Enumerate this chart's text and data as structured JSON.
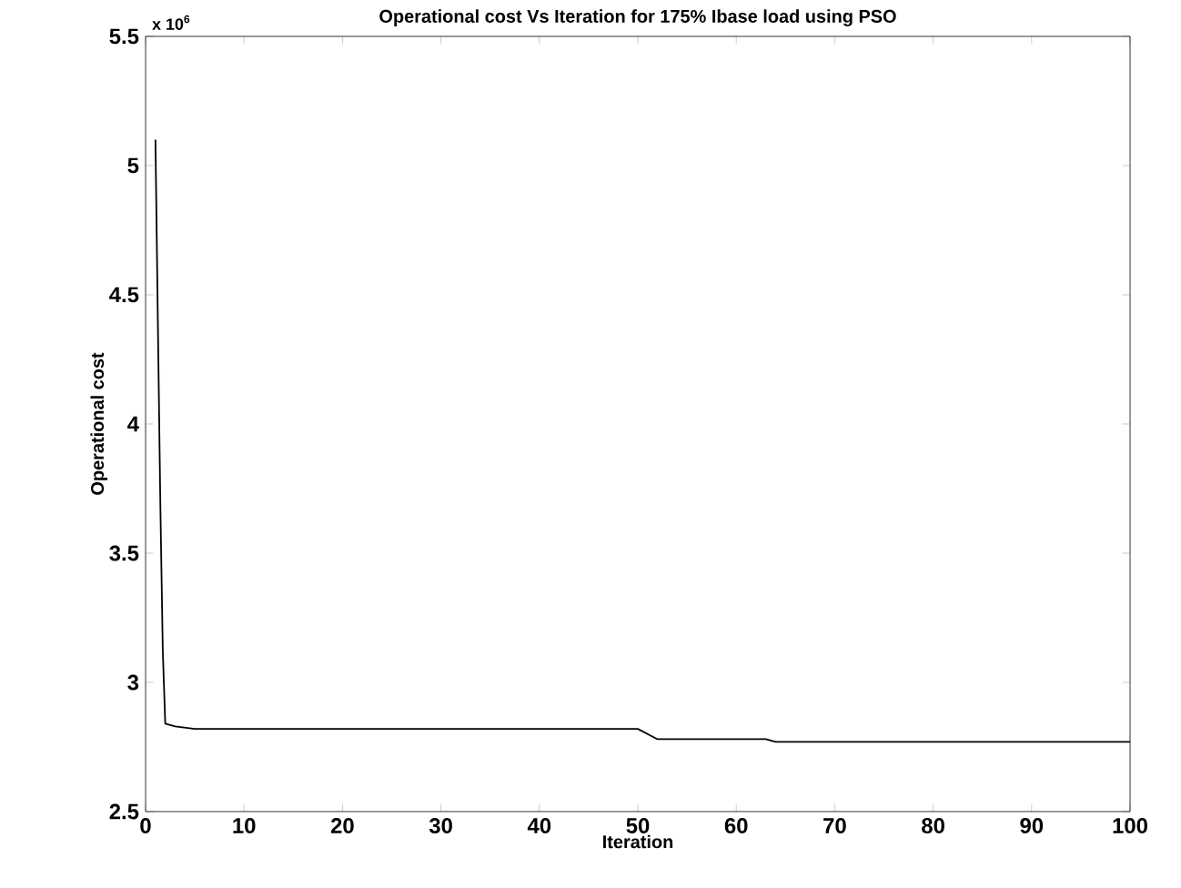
{
  "chart_data": {
    "type": "line",
    "title": "Operational cost Vs Iteration for 175% Ibase load using PSO",
    "xlabel": "Iteration",
    "ylabel": "Operational cost",
    "annotations": [
      "x 10$^{6}$"
    ],
    "xlim": [
      0,
      100
    ],
    "xticks": [
      0,
      10,
      20,
      30,
      40,
      50,
      60,
      70,
      80,
      90,
      100
    ],
    "ylim": [
      2.5,
      5.5
    ],
    "yticks": [
      2.5,
      3,
      3.5,
      4,
      4.5,
      5,
      5.5
    ],
    "marker": "none",
    "line_style": "solid",
    "series": [
      {
        "color": "#000000",
        "x": [
          1,
          1.1,
          1.3,
          1.5,
          1.75,
          2,
          3,
          5,
          50,
          52,
          63,
          64,
          100
        ],
        "values": [
          5.1,
          4.82,
          4.25,
          3.69,
          3.12,
          2.84,
          2.83,
          2.82,
          2.82,
          2.78,
          2.78,
          2.77,
          2.77
        ]
      }
    ]
  }
}
